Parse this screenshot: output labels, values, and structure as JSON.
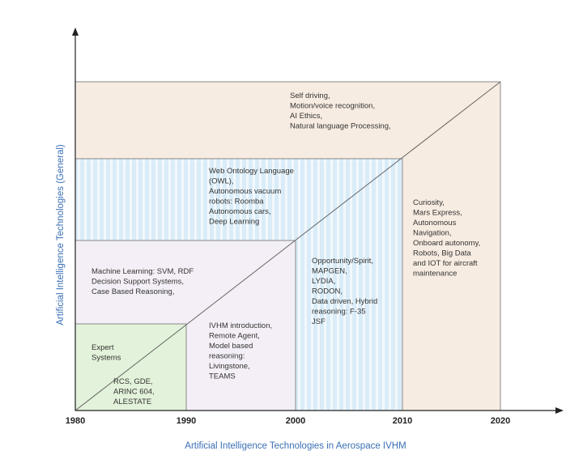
{
  "x_axis": {
    "label": "Artificial Intelligence Technologies in Aerospace IVHM",
    "ticks": [
      "1980",
      "1990",
      "2000",
      "2010",
      "2020"
    ]
  },
  "y_axis": {
    "label": "Artificial Intelligence Technologies (General)"
  },
  "regions": [
    {
      "lines": [
        "Self driving,",
        "Motion/voice recognition,",
        "AI Ethics,",
        "Natural language Processing,"
      ]
    },
    {
      "lines": [
        "Web Ontology Language",
        "(OWL),",
        "Autonomous vacuum",
        "robots: Roomba",
        "Autonomous cars,",
        "Deep Learning"
      ]
    },
    {
      "lines": [
        "Curiosity,",
        "Mars Express,",
        "Autonomous",
        "Navigation,",
        "Onboard autonomy,",
        "Robots, Big Data",
        "and IOT for aircraft",
        "maintenance"
      ]
    },
    {
      "lines": [
        "Opportunity/Spirit,",
        "MAPGEN,",
        "LYDIA,",
        "RODON,",
        "Data driven, Hybrid",
        "reasoning: F-35",
        "JSF"
      ]
    },
    {
      "lines": [
        "Machine Learning: SVM, RDF",
        "Decision Support Systems,",
        "Case Based Reasoning,"
      ]
    },
    {
      "lines": [
        "IVHM introduction,",
        "Remote Agent,",
        "Model based",
        "reasoning:",
        "Livingstone,",
        "TEAMS"
      ]
    },
    {
      "lines": [
        "Expert",
        "Systems"
      ]
    },
    {
      "lines": [
        "RCS, GDE,",
        "ARINC 604,",
        "ALESTATE"
      ]
    }
  ]
}
